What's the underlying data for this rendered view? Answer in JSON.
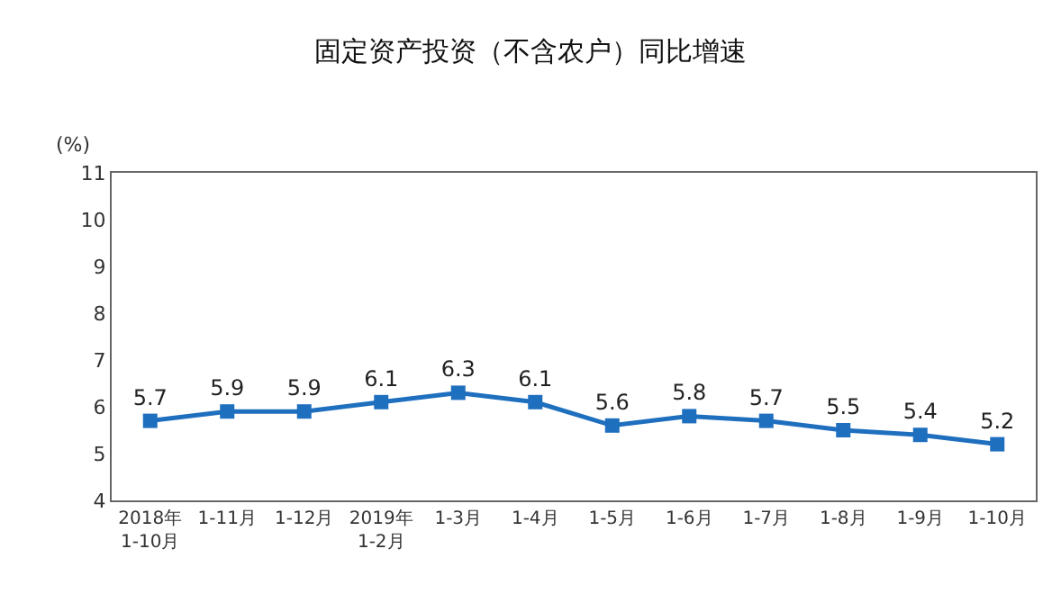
{
  "chart_data": {
    "type": "line",
    "title": "固定资产投资（不含农户）同比增速",
    "ylabel": "(%)",
    "categories": [
      "2018年\n1-10月",
      "1-11月",
      "1-12月",
      "2019年\n1-2月",
      "1-3月",
      "1-4月",
      "1-5月",
      "1-6月",
      "1-7月",
      "1-8月",
      "1-9月",
      "1-10月"
    ],
    "series": [
      {
        "color": "#1f6fbf",
        "values": [
          5.7,
          5.9,
          5.9,
          6.1,
          6.3,
          6.1,
          5.6,
          5.8,
          5.7,
          5.5,
          5.4,
          5.2
        ]
      }
    ],
    "ylim": [
      4,
      11
    ],
    "yticks": [
      4,
      5,
      6,
      7,
      8,
      9,
      10,
      11
    ],
    "marker": "square",
    "line_style": "solid",
    "data_labels": true
  }
}
